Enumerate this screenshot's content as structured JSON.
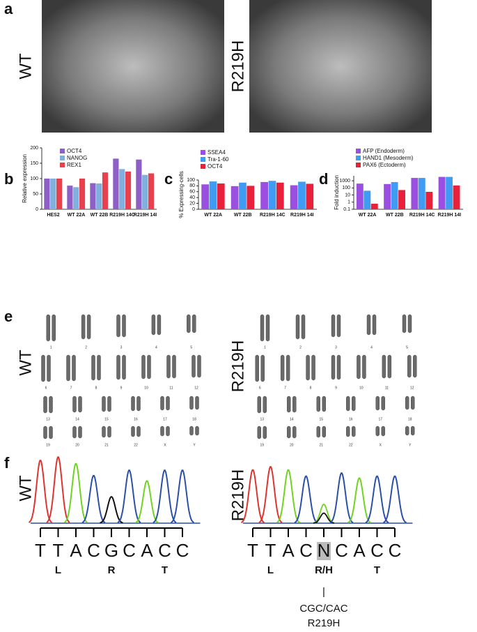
{
  "panels": {
    "a": "a",
    "b": "b",
    "c": "c",
    "d": "d",
    "e": "e",
    "f": "f"
  },
  "samples": [
    "WT",
    "R219H"
  ],
  "chart_data": [
    {
      "type": "bar",
      "y_label": "Relative expression",
      "categories": [
        "HES2",
        "WT 22A",
        "WT 22B",
        "R219H 14C",
        "R219H 14I"
      ],
      "series": [
        {
          "name": "OCT4",
          "color": "#8e5fc6",
          "values": [
            100,
            77,
            85,
            165,
            162
          ]
        },
        {
          "name": "NANOG",
          "color": "#7fb0de",
          "values": [
            100,
            72,
            84,
            131,
            112
          ]
        },
        {
          "name": "REX1",
          "color": "#e8404c",
          "values": [
            100,
            100,
            120,
            123,
            117
          ]
        }
      ],
      "ylim": [
        0,
        200
      ],
      "yticks": [
        0,
        50,
        100,
        150,
        200
      ]
    },
    {
      "type": "bar",
      "y_label": "% Expressing-cells",
      "categories": [
        "WT 22A",
        "WT 22B",
        "R219H 14C",
        "R219H 14I"
      ],
      "series": [
        {
          "name": "SSEA4",
          "color": "#9a4fe0",
          "values": [
            85,
            79,
            93,
            82
          ]
        },
        {
          "name": "Tra-1-60",
          "color": "#3f9cf2",
          "values": [
            95,
            91,
            97,
            94
          ]
        },
        {
          "name": "OCT4",
          "color": "#e8203a",
          "values": [
            88,
            80,
            91,
            87
          ]
        }
      ],
      "ylim": [
        0,
        100
      ],
      "yticks": [
        0,
        20,
        40,
        60,
        80,
        100
      ]
    },
    {
      "type": "bar",
      "y_label": "Fold induction",
      "log": true,
      "categories": [
        "WT 22A",
        "WT 22B",
        "R219H 14C",
        "R219H 14I"
      ],
      "series": [
        {
          "name": "AFP (Endoderm)",
          "color": "#9a4fe0",
          "values": [
            400,
            350,
            2500,
            3500
          ]
        },
        {
          "name": "HAND1 (Mesoderm)",
          "color": "#3f9cf2",
          "values": [
            40,
            650,
            2500,
            3500
          ]
        },
        {
          "name": "PAX6 (Ectoderm)",
          "color": "#e8203a",
          "values": [
            0.6,
            50,
            28,
            220
          ]
        }
      ],
      "ylim": [
        0.1,
        5000
      ],
      "yticks": [
        0.1,
        1,
        10,
        100,
        1000
      ]
    }
  ],
  "karyotype": {
    "rows": [
      [
        "1",
        "2",
        "3",
        "4",
        "5"
      ],
      [
        "6",
        "7",
        "8",
        "9",
        "10",
        "11",
        "12"
      ],
      [
        "13",
        "14",
        "15",
        "16",
        "17",
        "18"
      ],
      [
        "19",
        "20",
        "21",
        "22",
        "X",
        "Y"
      ]
    ]
  },
  "sequencing": [
    {
      "bases": [
        "T",
        "T",
        "A",
        "C",
        "G",
        "C",
        "A",
        "C",
        "C"
      ],
      "amino_acids": [
        "L",
        "R",
        "T"
      ]
    },
    {
      "bases": [
        "T",
        "T",
        "A",
        "C",
        "N",
        "C",
        "A",
        "C",
        "C"
      ],
      "amino_acids": [
        "L",
        "R/H",
        "T"
      ],
      "bar": "|",
      "codons": "CGC/CAC",
      "mutation": "R219H"
    }
  ]
}
